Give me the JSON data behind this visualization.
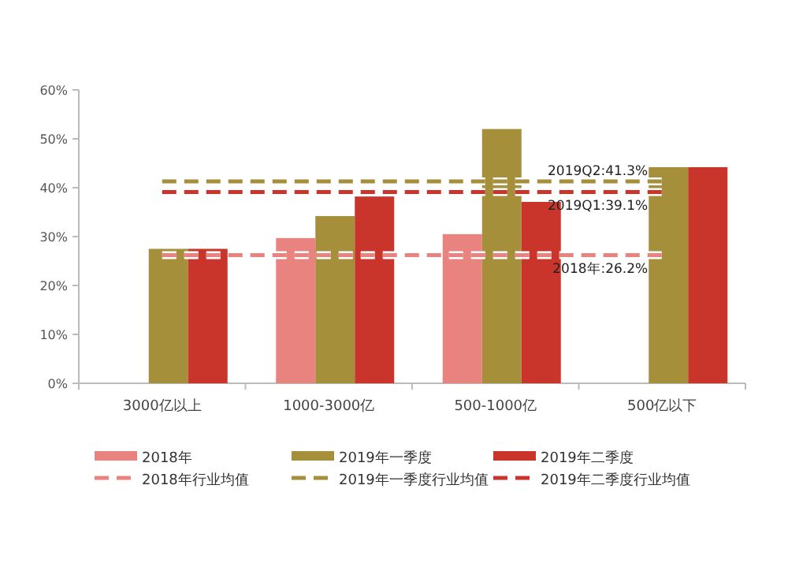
{
  "chart_data": {
    "type": "bar",
    "categories": [
      "3000亿以上",
      "1000-3000亿",
      "500-1000亿",
      "500亿以下"
    ],
    "series": [
      {
        "name": "2018年",
        "color": "#e8837f",
        "values": [
          null,
          29.7,
          30.5,
          null
        ]
      },
      {
        "name": "2019年一季度",
        "color": "#a58f3b",
        "values": [
          27.5,
          34.2,
          52.0,
          44.2
        ]
      },
      {
        "name": "2019年二季度",
        "color": "#c9352b",
        "values": [
          27.5,
          38.2,
          37.1,
          44.2
        ]
      },
      {
        "name": "2018年行业均值",
        "type": "line",
        "line_style": "dashed",
        "color": "#e8837f",
        "values": [
          26.2,
          26.2,
          26.2,
          26.2
        ]
      },
      {
        "name": "2019年一季度行业均值",
        "type": "line",
        "line_style": "dashed",
        "color": "#a58f3b",
        "values": [
          41.3,
          41.3,
          41.3,
          41.3
        ]
      },
      {
        "name": "2019年二季度行业均值",
        "type": "line",
        "line_style": "dashed",
        "color": "#c9352b",
        "values": [
          39.1,
          39.1,
          39.1,
          39.1
        ]
      }
    ],
    "ylim": [
      0,
      60
    ],
    "yticks": [
      {
        "value": 0,
        "label": "0%"
      },
      {
        "value": 10,
        "label": "10%"
      },
      {
        "value": 20,
        "label": "20%"
      },
      {
        "value": 30,
        "label": "30%"
      },
      {
        "value": 40,
        "label": "40%"
      },
      {
        "value": 50,
        "label": "50%"
      },
      {
        "value": 60,
        "label": "60%"
      }
    ],
    "annotations": [
      {
        "text": "2019Q2:41.3%",
        "y": 41.3
      },
      {
        "text": "2019Q1:39.1%",
        "y": 39.1
      },
      {
        "text": "2018年:26.2%",
        "y": 26.2
      }
    ],
    "legend": "bottom",
    "grid": false
  }
}
